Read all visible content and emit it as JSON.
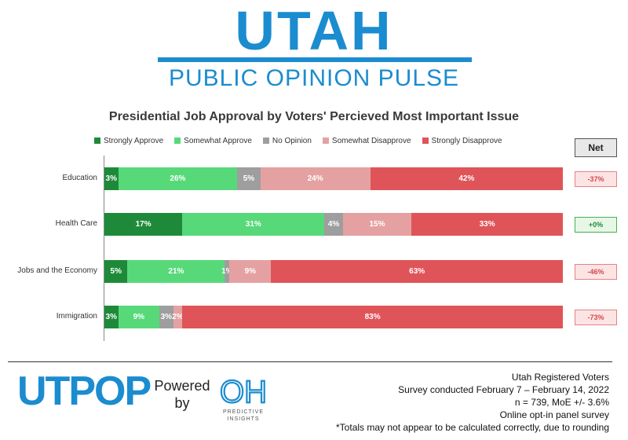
{
  "header": {
    "logo_main": "UTAH",
    "logo_sub": "PUBLIC OPINION PULSE"
  },
  "colors": {
    "strongly_approve": "#1e8a39",
    "somewhat_approve": "#57d97a",
    "no_opinion": "#9e9e9e",
    "somewhat_disapprove": "#e5a1a1",
    "strongly_disapprove": "#df5458",
    "brand_blue": "#1b8ccf"
  },
  "chart_data": {
    "type": "bar",
    "orientation": "horizontal",
    "stacked": true,
    "title": "Presidential Job Approval by Voters' Percieved Most Important Issue",
    "categories": [
      "Education",
      "Health Care",
      "Jobs and the Economy",
      "Immigration"
    ],
    "series": [
      {
        "name": "Strongly Approve",
        "values": [
          3,
          17,
          5,
          3
        ],
        "labels": [
          "3%",
          "17%",
          "5%",
          "3%"
        ]
      },
      {
        "name": "Somewhat Approve",
        "values": [
          26,
          31,
          21,
          9
        ],
        "labels": [
          "26%",
          "31%",
          "21%",
          "9%"
        ]
      },
      {
        "name": "No Opinion",
        "values": [
          5,
          4,
          1,
          3
        ],
        "labels": [
          "5%",
          "4%",
          "1%",
          "3%"
        ]
      },
      {
        "name": "Somewhat Disapprove",
        "values": [
          24,
          15,
          9,
          2
        ],
        "labels": [
          "24%",
          "15%",
          "9%",
          "2%"
        ]
      },
      {
        "name": "Strongly Disapprove",
        "values": [
          42,
          33,
          63,
          83
        ],
        "labels": [
          "42%",
          "33%",
          "63%",
          "83%"
        ]
      }
    ],
    "net_header": "Net",
    "net": [
      "-37%",
      "+0%",
      "-46%",
      "-73%"
    ],
    "legend_position": "top",
    "grid": false
  },
  "footer": {
    "utpop_logo": "UTPOP",
    "powered_line1": "Powered",
    "powered_line2": "by",
    "oh_logo": "OH",
    "oh_text_line1": "PREDICTIVE",
    "oh_text_line2": "INSIGHTS",
    "survey_lines": [
      "Utah Registered Voters",
      "Survey conducted February 7 – February 14, 2022",
      "n = 739, MoE +/- 3.6%",
      "Online opt-in panel survey",
      "*Totals may not appear to be calculated correctly, due to rounding"
    ]
  }
}
